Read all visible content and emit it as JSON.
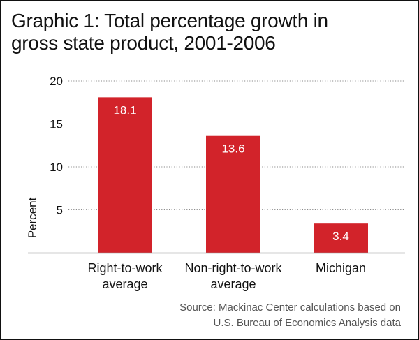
{
  "chart_data": {
    "type": "bar",
    "title": "Graphic 1: Total percentage growth in gross state product, 2001-2006",
    "title_lines": [
      "Graphic 1: Total percentage growth in",
      "gross state product, 2001-2006"
    ],
    "categories": [
      "Right-to-work average",
      "Non-right-to-work average",
      "Michigan"
    ],
    "category_lines": [
      [
        "Right-to-work",
        "average"
      ],
      [
        "Non-right-to-work",
        "average"
      ],
      [
        "Michigan"
      ]
    ],
    "values": [
      18.1,
      13.6,
      3.4
    ],
    "data_labels": [
      "18.1",
      "13.6",
      "3.4"
    ],
    "xlabel": "",
    "ylabel": "Percent",
    "ylim": [
      0,
      20
    ],
    "yticks": [
      5,
      10,
      15,
      20
    ],
    "ytick_labels": [
      "5",
      "10",
      "15",
      "20"
    ],
    "grid": true,
    "grid_style": "dotted",
    "legend": "none",
    "bar_color": "#d2232a",
    "source_lines": [
      "Source: Mackinac Center calculations based on",
      "U.S. Bureau of Economics Analysis data"
    ]
  }
}
